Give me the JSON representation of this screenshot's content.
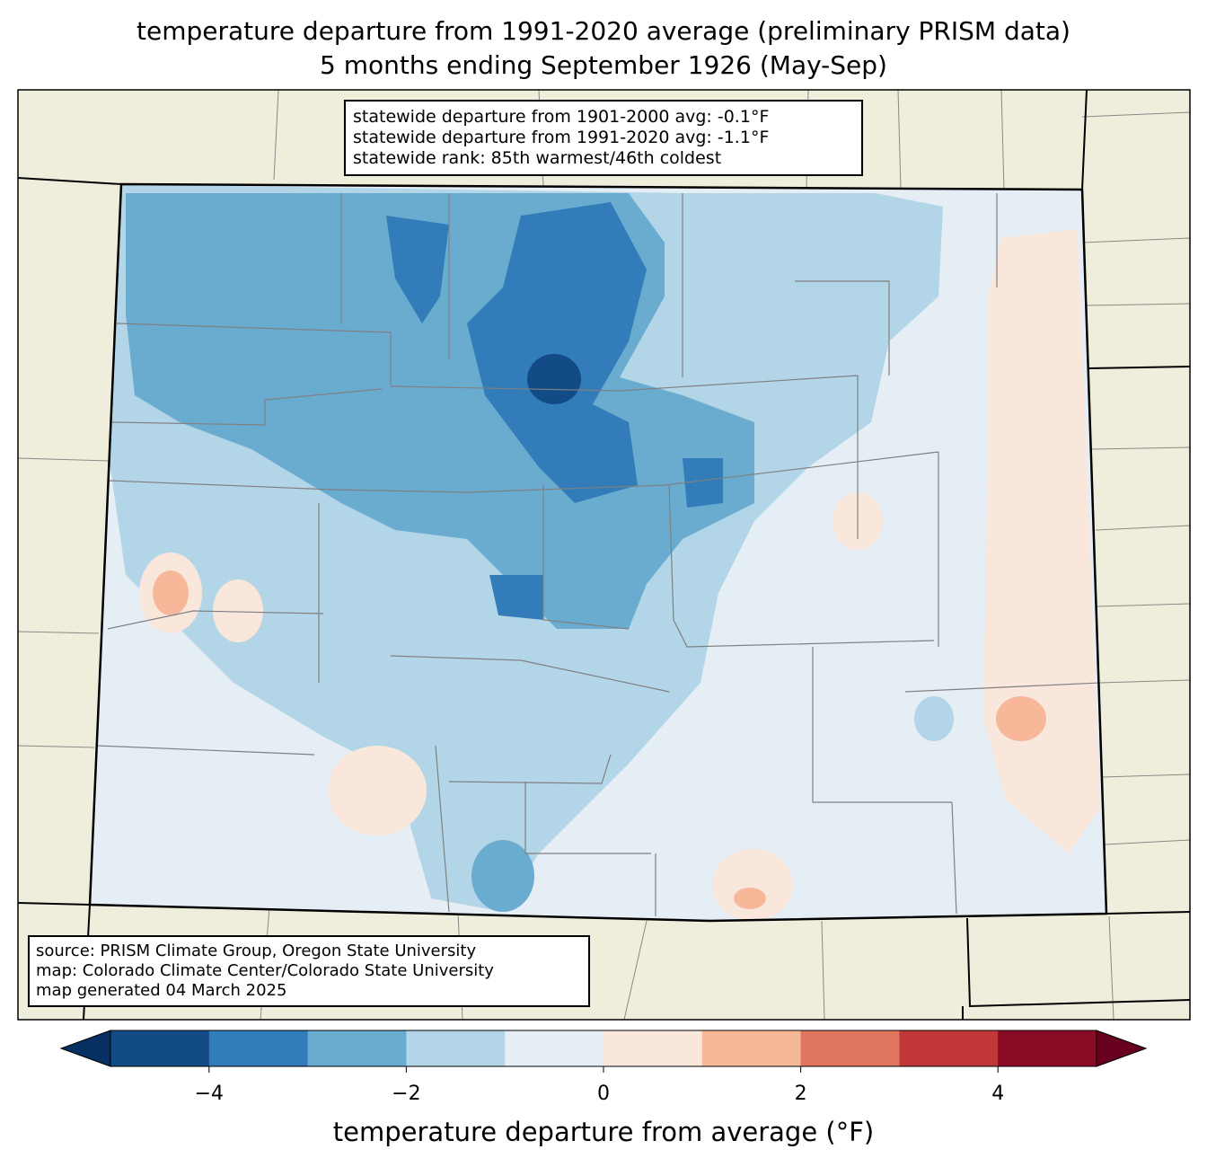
{
  "title": {
    "line1": "temperature departure from 1991-2020 average (preliminary PRISM data)",
    "line2": "5 months ending September 1926 (May-Sep)"
  },
  "stats": {
    "line1": "statewide departure from 1901-2000 avg: -0.1°F",
    "line2": "statewide departure from 1991-2020 avg: -1.1°F",
    "line3": "statewide rank: 85th warmest/46th coldest"
  },
  "source": {
    "line1": "source: PRISM Climate Group, Oregon State University",
    "line2": "map: Colorado Climate Center/Colorado State University",
    "line3": "map generated 04 March 2025"
  },
  "colorbar": {
    "label": "temperature departure from average (°F)",
    "range": [
      -5,
      5
    ],
    "bin_width": 1,
    "colors": [
      "#134b87",
      "#327cb9",
      "#6aacd0",
      "#b2d5e7",
      "#e5eef4",
      "#fae7dc",
      "#f7b799",
      "#e0775e",
      "#c1373a",
      "#8a0b25"
    ],
    "under_color": "#053061",
    "over_color": "#67001f",
    "ticks": [
      "−4",
      "−2",
      "0",
      "2",
      "4"
    ],
    "tick_values": [
      -4,
      -2,
      0,
      2,
      4
    ]
  },
  "map_colors": {
    "land": "#efeedc",
    "state_base": "#e5eef4"
  }
}
